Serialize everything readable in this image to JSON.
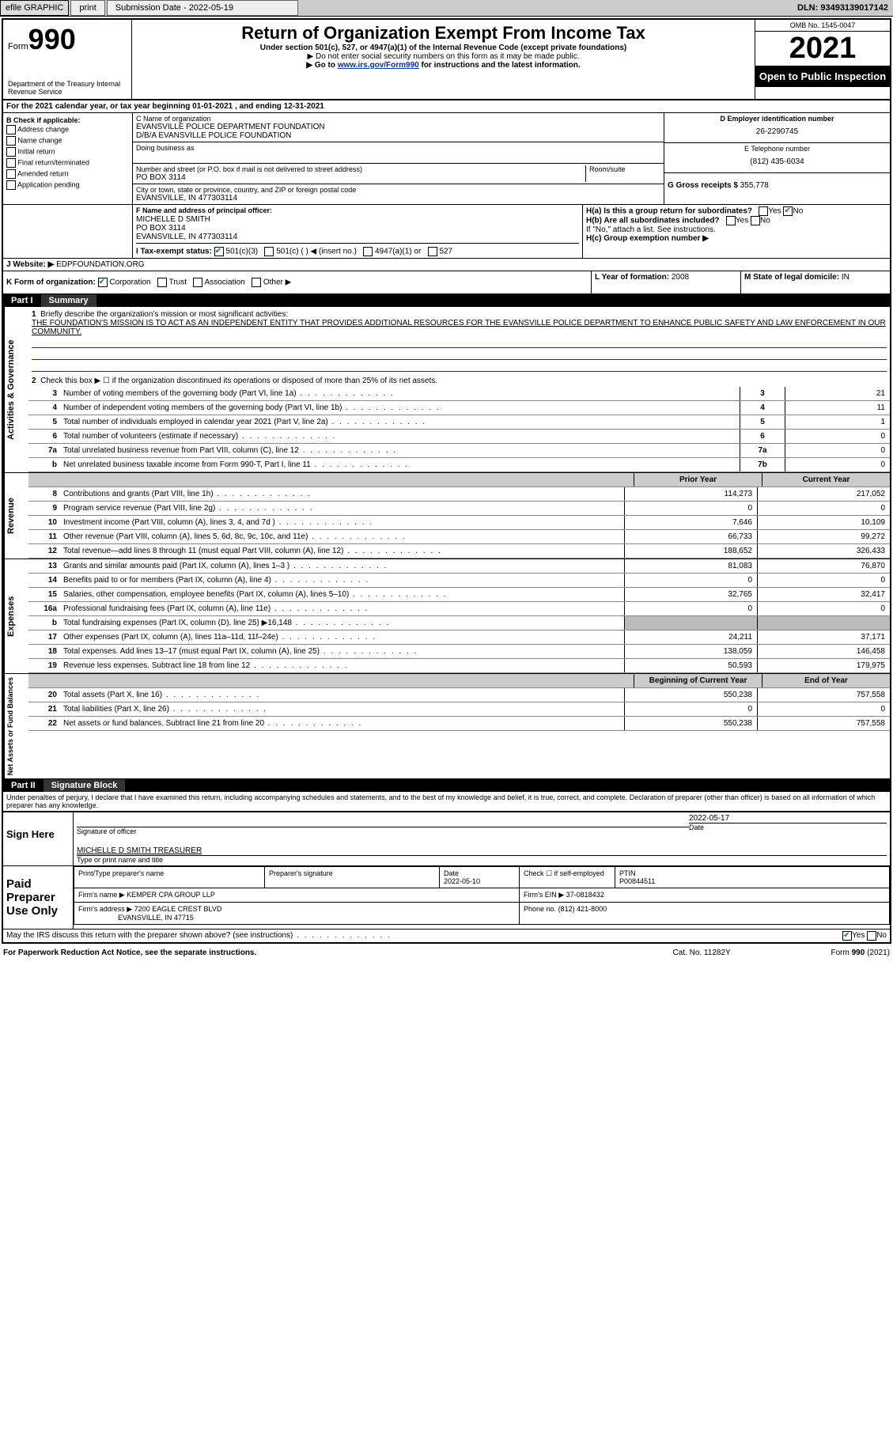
{
  "topbar": {
    "efile": "efile GRAPHIC",
    "print": "print",
    "submission": "Submission Date - 2022-05-19",
    "dln": "DLN: 93493139017142"
  },
  "header": {
    "form_label": "Form",
    "form_num": "990",
    "dept": "Department of the Treasury\nInternal Revenue Service",
    "title": "Return of Organization Exempt From Income Tax",
    "sub1": "Under section 501(c), 527, or 4947(a)(1) of the Internal Revenue Code (except private foundations)",
    "sub2": "▶ Do not enter social security numbers on this form as it may be made public.",
    "sub3_pre": "▶ Go to ",
    "sub3_link": "www.irs.gov/Form990",
    "sub3_post": " for instructions and the latest information.",
    "omb": "OMB No. 1545-0047",
    "year": "2021",
    "open": "Open to Public Inspection"
  },
  "line_a": "For the 2021 calendar year, or tax year beginning 01-01-2021    , and ending 12-31-2021",
  "box_b": {
    "hdr": "B Check if applicable:",
    "items": [
      "Address change",
      "Name change",
      "Initial return",
      "Final return/terminated",
      "Amended return",
      "Application pending"
    ]
  },
  "box_c": {
    "name_lbl": "C Name of organization",
    "name": "EVANSVILLE POLICE DEPARTMENT FOUNDATION",
    "dba": "D/B/A EVANSVILLE POLICE FOUNDATION",
    "dba_lbl": "Doing business as",
    "street_lbl": "Number and street (or P.O. box if mail is not delivered to street address)",
    "room_lbl": "Room/suite",
    "street": "PO BOX 3114",
    "city_lbl": "City or town, state or province, country, and ZIP or foreign postal code",
    "city": "EVANSVILLE, IN  477303114"
  },
  "box_d": {
    "lbl": "D Employer identification number",
    "val": "26-2290745"
  },
  "box_e": {
    "lbl": "E Telephone number",
    "val": "(812) 435-6034"
  },
  "box_g": {
    "lbl": "G Gross receipts $",
    "val": "355,778"
  },
  "box_f": {
    "lbl": "F Name and address of principal officer:",
    "name": "MICHELLE D SMITH",
    "addr1": "PO BOX 3114",
    "addr2": "EVANSVILLE, IN  477303114"
  },
  "box_h": {
    "ha": "H(a)  Is this a group return for subordinates?",
    "hb": "H(b)  Are all subordinates included?",
    "hb2": "If \"No,\" attach a list. See instructions.",
    "hc": "H(c)  Group exemption number ▶",
    "yes": "Yes",
    "no": "No"
  },
  "box_i": {
    "lbl": "I  Tax-exempt status:",
    "opts": [
      "501(c)(3)",
      "501(c) (   ) ◀ (insert no.)",
      "4947(a)(1) or",
      "527"
    ]
  },
  "box_j": {
    "lbl": "J  Website: ▶",
    "val": "EDPFOUNDATION.ORG"
  },
  "box_k": {
    "lbl": "K Form of organization:",
    "opts": [
      "Corporation",
      "Trust",
      "Association",
      "Other ▶"
    ]
  },
  "box_l": {
    "lbl": "L Year of formation:",
    "val": "2008"
  },
  "box_m": {
    "lbl": "M State of legal domicile:",
    "val": "IN"
  },
  "part1": {
    "label": "Part I",
    "name": "Summary"
  },
  "gov": {
    "tab": "Activities & Governance",
    "l1_lbl": "Briefly describe the organization's mission or most significant activities:",
    "l1_txt": "THE FOUNDATION'S MISSION IS TO ACT AS AN INDEPENDENT ENTITY THAT PROVIDES ADDITIONAL RESOURCES FOR THE EVANSVILLE POLICE DEPARTMENT TO ENHANCE PUBLIC SAFETY AND LAW ENFORCEMENT IN OUR COMMUNITY.",
    "l2": "Check this box ▶ ☐  if the organization discontinued its operations or disposed of more than 25% of its net assets.",
    "rows": [
      {
        "n": "3",
        "t": "Number of voting members of the governing body (Part VI, line 1a)",
        "b": "3",
        "v": "21"
      },
      {
        "n": "4",
        "t": "Number of independent voting members of the governing body (Part VI, line 1b)",
        "b": "4",
        "v": "11"
      },
      {
        "n": "5",
        "t": "Total number of individuals employed in calendar year 2021 (Part V, line 2a)",
        "b": "5",
        "v": "1"
      },
      {
        "n": "6",
        "t": "Total number of volunteers (estimate if necessary)",
        "b": "6",
        "v": "0"
      },
      {
        "n": "7a",
        "t": "Total unrelated business revenue from Part VIII, column (C), line 12",
        "b": "7a",
        "v": "0"
      },
      {
        "n": " b",
        "t": "Net unrelated business taxable income from Form 990-T, Part I, line 11",
        "b": "7b",
        "v": "0"
      }
    ]
  },
  "rev": {
    "tab": "Revenue",
    "hdr_prior": "Prior Year",
    "hdr_curr": "Current Year",
    "rows": [
      {
        "n": "8",
        "t": "Contributions and grants (Part VIII, line 1h)",
        "p": "114,273",
        "c": "217,052"
      },
      {
        "n": "9",
        "t": "Program service revenue (Part VIII, line 2g)",
        "p": "0",
        "c": "0"
      },
      {
        "n": "10",
        "t": "Investment income (Part VIII, column (A), lines 3, 4, and 7d )",
        "p": "7,646",
        "c": "10,109"
      },
      {
        "n": "11",
        "t": "Other revenue (Part VIII, column (A), lines 5, 6d, 8c, 9c, 10c, and 11e)",
        "p": "66,733",
        "c": "99,272"
      },
      {
        "n": "12",
        "t": "Total revenue—add lines 8 through 11 (must equal Part VIII, column (A), line 12)",
        "p": "188,652",
        "c": "326,433"
      }
    ]
  },
  "exp": {
    "tab": "Expenses",
    "rows": [
      {
        "n": "13",
        "t": "Grants and similar amounts paid (Part IX, column (A), lines 1–3 )",
        "p": "81,083",
        "c": "76,870"
      },
      {
        "n": "14",
        "t": "Benefits paid to or for members (Part IX, column (A), line 4)",
        "p": "0",
        "c": "0"
      },
      {
        "n": "15",
        "t": "Salaries, other compensation, employee benefits (Part IX, column (A), lines 5–10)",
        "p": "32,765",
        "c": "32,417"
      },
      {
        "n": "16a",
        "t": "Professional fundraising fees (Part IX, column (A), line 11e)",
        "p": "0",
        "c": "0"
      },
      {
        "n": "b",
        "t": "Total fundraising expenses (Part IX, column (D), line 25) ▶16,148",
        "p": "",
        "c": "",
        "grey": true
      },
      {
        "n": "17",
        "t": "Other expenses (Part IX, column (A), lines 11a–11d, 11f–24e)",
        "p": "24,211",
        "c": "37,171"
      },
      {
        "n": "18",
        "t": "Total expenses. Add lines 13–17 (must equal Part IX, column (A), line 25)",
        "p": "138,059",
        "c": "146,458"
      },
      {
        "n": "19",
        "t": "Revenue less expenses. Subtract line 18 from line 12",
        "p": "50,593",
        "c": "179,975"
      }
    ]
  },
  "net": {
    "tab": "Net Assets or Fund Balances",
    "hdr_beg": "Beginning of Current Year",
    "hdr_end": "End of Year",
    "rows": [
      {
        "n": "20",
        "t": "Total assets (Part X, line 16)",
        "p": "550,238",
        "c": "757,558"
      },
      {
        "n": "21",
        "t": "Total liabilities (Part X, line 26)",
        "p": "0",
        "c": "0"
      },
      {
        "n": "22",
        "t": "Net assets or fund balances. Subtract line 21 from line 20",
        "p": "550,238",
        "c": "757,558"
      }
    ]
  },
  "part2": {
    "label": "Part II",
    "name": "Signature Block"
  },
  "sig": {
    "decl": "Under penalties of perjury, I declare that I have examined this return, including accompanying schedules and statements, and to the best of my knowledge and belief, it is true, correct, and complete. Declaration of preparer (other than officer) is based on all information of which preparer has any knowledge.",
    "sign_here": "Sign Here",
    "date": "2022-05-17",
    "sig_lbl": "Signature of officer",
    "date_lbl": "Date",
    "name": "MICHELLE D SMITH TREASURER",
    "name_lbl": "Type or print name and title"
  },
  "prep": {
    "label": "Paid Preparer Use Only",
    "h1": "Print/Type preparer's name",
    "h2": "Preparer's signature",
    "h3": "Date",
    "h3v": "2022-05-10",
    "h4": "Check ☐ if self-employed",
    "h5": "PTIN",
    "h5v": "P00844511",
    "firm_lbl": "Firm's name    ▶",
    "firm": "KEMPER CPA GROUP LLP",
    "ein_lbl": "Firm's EIN ▶",
    "ein": "37-0818432",
    "addr_lbl": "Firm's address ▶",
    "addr1": "7200 EAGLE CREST BLVD",
    "addr2": "EVANSVILLE, IN  47715",
    "ph_lbl": "Phone no.",
    "ph": "(812) 421-8000"
  },
  "discuss": "May the IRS discuss this return with the preparer shown above? (see instructions)",
  "footer": {
    "left": "For Paperwork Reduction Act Notice, see the separate instructions.",
    "mid": "Cat. No. 11282Y",
    "right": "Form 990 (2021)"
  }
}
